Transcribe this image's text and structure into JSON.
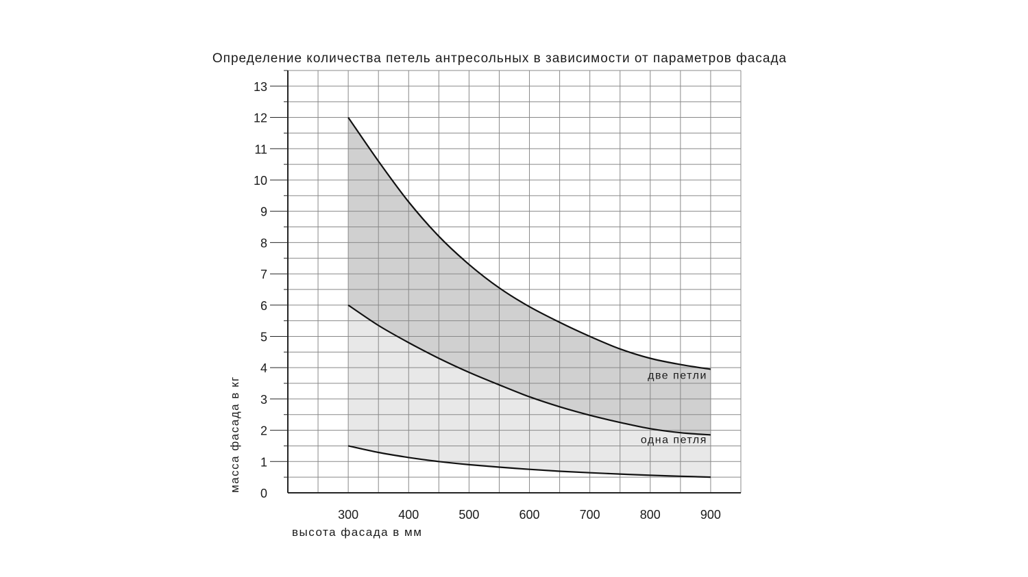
{
  "chart_data": {
    "type": "area",
    "title": "Определение количества петель антресольных в зависимости от параметров фасада",
    "xlabel": "высота фасада в мм",
    "ylabel": "масса фасада в кг",
    "xlim": [
      200,
      950
    ],
    "ylim": [
      0,
      13.5
    ],
    "x_ticks": [
      300,
      400,
      500,
      600,
      700,
      800,
      900
    ],
    "y_ticks": [
      0,
      1,
      2,
      3,
      4,
      5,
      6,
      7,
      8,
      9,
      10,
      11,
      12,
      13
    ],
    "grid": true,
    "x": [
      300,
      350,
      400,
      450,
      500,
      550,
      600,
      650,
      700,
      750,
      800,
      850,
      900
    ],
    "series": [
      {
        "key": "lower",
        "values": [
          1.5,
          1.29,
          1.13,
          1.0,
          0.9,
          0.82,
          0.75,
          0.69,
          0.64,
          0.6,
          0.56,
          0.53,
          0.5
        ]
      },
      {
        "key": "middle",
        "values": [
          6.0,
          5.35,
          4.8,
          4.3,
          3.85,
          3.45,
          3.07,
          2.75,
          2.48,
          2.25,
          2.05,
          1.92,
          1.85
        ]
      },
      {
        "key": "upper",
        "values": [
          12.0,
          10.6,
          9.3,
          8.2,
          7.3,
          6.55,
          5.95,
          5.45,
          5.0,
          4.6,
          4.3,
          4.1,
          3.95
        ]
      }
    ],
    "regions": [
      {
        "label": "одна петля",
        "between": [
          "lower",
          "middle"
        ],
        "color": "#e8e8e8",
        "label_x": 900,
        "label_y": 1.7
      },
      {
        "label": "две петли",
        "between": [
          "middle",
          "upper"
        ],
        "color": "#d0d0d0",
        "label_x": 900,
        "label_y": 3.75
      }
    ],
    "colors": {
      "line": "#111111",
      "grid": "#888888",
      "axis": "#222222"
    }
  }
}
